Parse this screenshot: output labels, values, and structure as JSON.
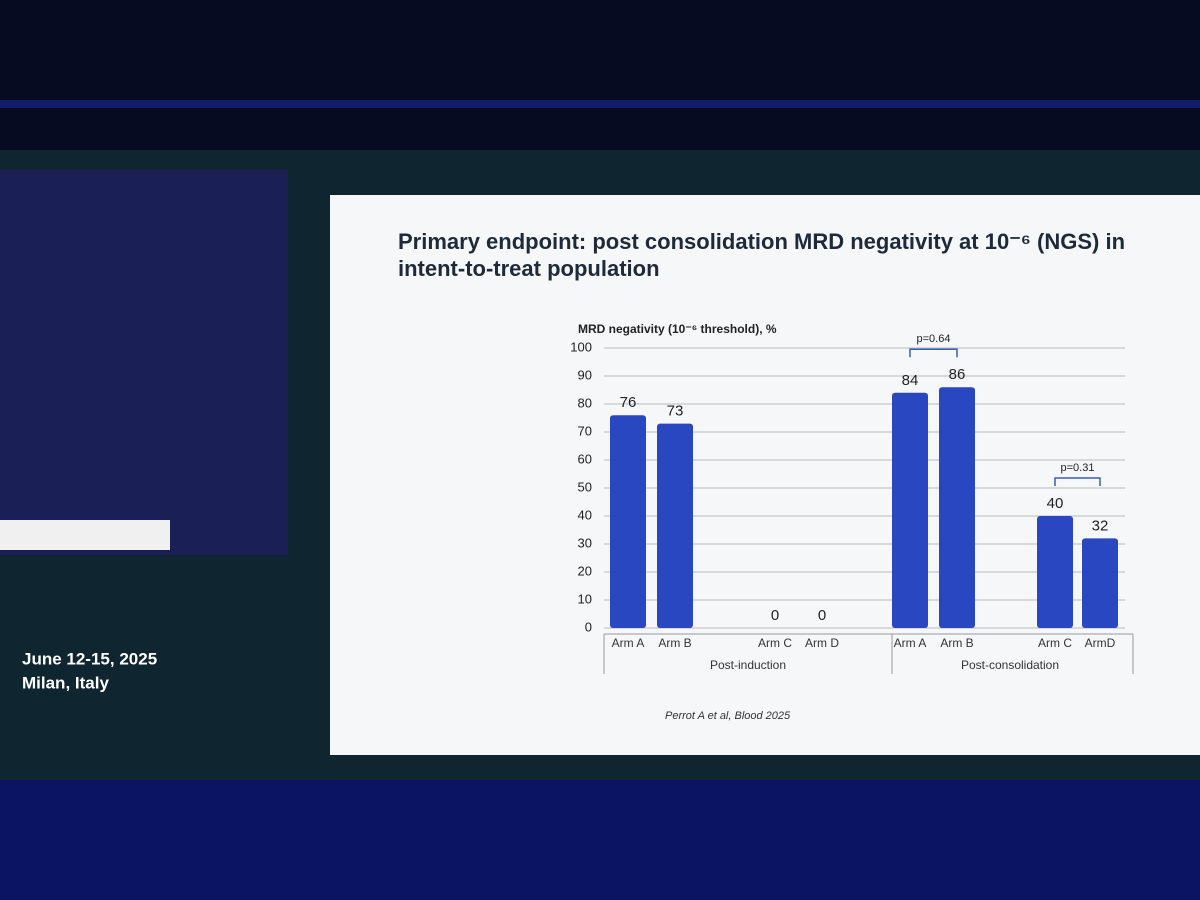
{
  "chart_data": {
    "type": "bar",
    "title": "Primary endpoint: post consolidation MRD negativity at 10⁻⁶ (NGS) in intent-to-treat population",
    "y_label": "MRD negativity (10⁻⁶ threshold), %",
    "categories": [
      "Arm A",
      "Arm B",
      "Arm C",
      "Arm D",
      "Arm A",
      "Arm B",
      "Arm C",
      "ArmD"
    ],
    "values": [
      76,
      73,
      0,
      0,
      84,
      86,
      40,
      32
    ],
    "color": "#2a47c2",
    "group_labels": [
      "Post-induction",
      "Post-consolidation"
    ],
    "annotations": [
      "p=0.64",
      "p=0.31"
    ],
    "source": "Perrot A et al, Blood 2025",
    "ylim": [
      0,
      100
    ],
    "yticks": [
      0,
      10,
      20,
      30,
      40,
      50,
      60,
      70,
      80,
      90,
      100
    ],
    "grid": true
  },
  "event": {
    "dates": "June 12-15, 2025",
    "location": "Milan, Italy"
  }
}
